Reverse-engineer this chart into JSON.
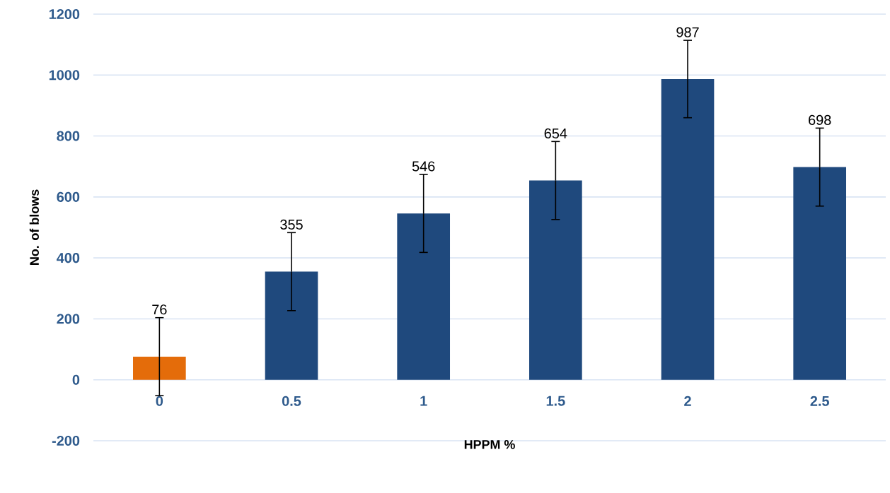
{
  "chart_data": {
    "type": "bar",
    "xlabel": "HPPM %",
    "ylabel": "No. of blows",
    "categories": [
      "0",
      "0.5",
      "1",
      "1.5",
      "2",
      "2.5"
    ],
    "values": [
      76,
      355,
      546,
      654,
      987,
      698
    ],
    "colors": [
      "#e46c0a",
      "#1f497d",
      "#1f497d",
      "#1f497d",
      "#1f497d",
      "#1f497d"
    ],
    "errors": [
      128,
      128,
      128,
      128,
      127,
      128
    ],
    "data_labels": true,
    "ylim": [
      -200,
      1200
    ],
    "yticks": [
      -200,
      0,
      200,
      400,
      600,
      800,
      1000,
      1200
    ],
    "grid": "y"
  }
}
